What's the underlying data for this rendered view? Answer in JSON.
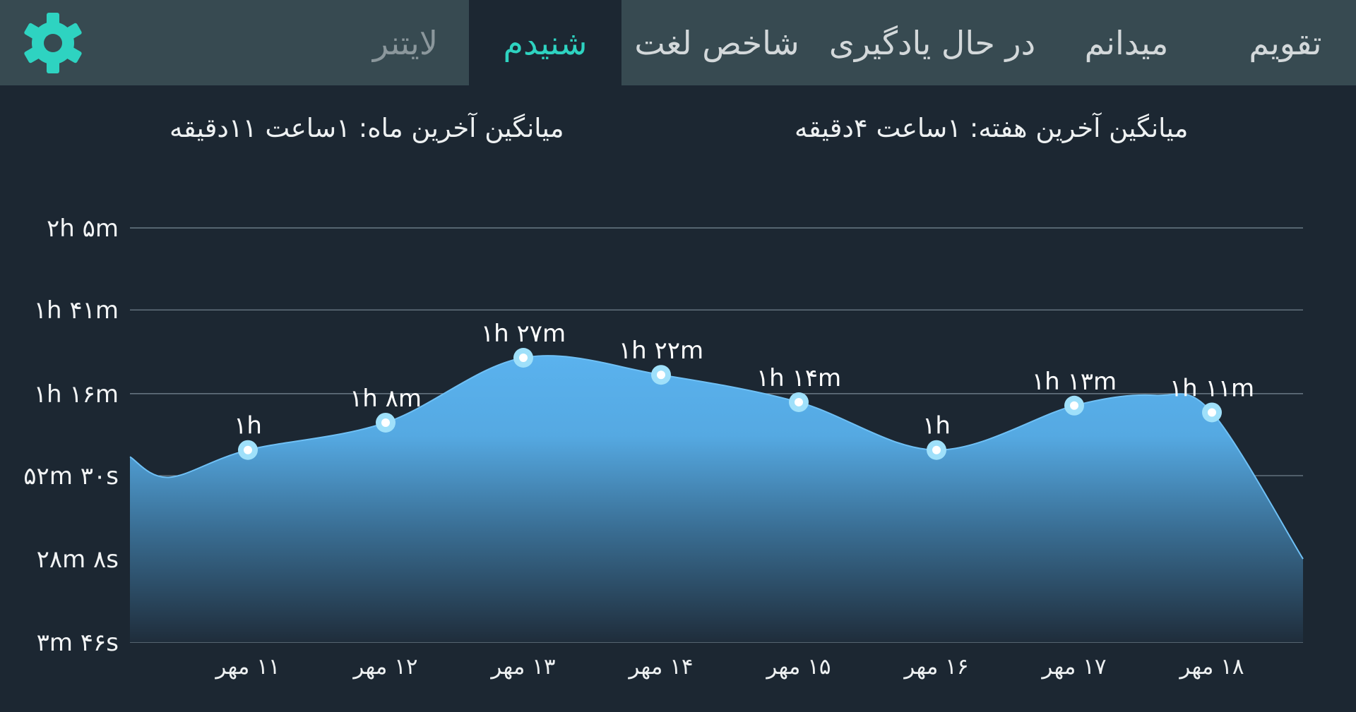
{
  "app": {
    "settings_icon": "gear-icon",
    "accent_color": "#2ed3c1",
    "chart_color": "#5aaee8"
  },
  "tabs": [
    {
      "label": "تقویم",
      "active": false
    },
    {
      "label": "میدانم",
      "active": false
    },
    {
      "label": "در حال یادگیری",
      "active": false
    },
    {
      "label": "شاخص لغت",
      "active": false
    },
    {
      "label": "شنیدم",
      "active": true
    },
    {
      "label": "لایتنر",
      "active": false
    }
  ],
  "summary": {
    "week_avg": "میانگین آخرین هفته: ۱ساعت  ۴دقیقه",
    "month_avg": "میانگین آخرین ماه: ۱ساعت  ۱۱دقیقه"
  },
  "chart_data": {
    "type": "area",
    "y_unit": "minutes",
    "ylim": [
      3.77,
      125
    ],
    "yticks": [
      {
        "value": 125,
        "label": "۲h ۵m"
      },
      {
        "value": 101,
        "label": "۱h ۴۱m"
      },
      {
        "value": 76.5,
        "label": "۱h ۱۶m"
      },
      {
        "value": 52.5,
        "label": "۵۲m ۳۰s"
      },
      {
        "value": 28.13,
        "label": "۲۸m ۸s"
      },
      {
        "value": 3.77,
        "label": "۳m ۴۶s"
      }
    ],
    "categories": [
      "۱۱ مهر",
      "۱۲ مهر",
      "۱۳ مهر",
      "۱۴ مهر",
      "۱۵ مهر",
      "۱۶ مهر",
      "۱۷ مهر",
      "۱۸ مهر"
    ],
    "values": [
      60,
      68,
      87,
      82,
      74,
      60,
      73,
      71
    ],
    "data_labels": [
      "۱h",
      "۱h ۸m",
      "۱h ۲۷m",
      "۱h ۲۲m",
      "۱h ۱۴m",
      "۱h",
      "۱h ۱۳m",
      "۱h ۱۱m"
    ],
    "grid": true,
    "legend": "none"
  }
}
